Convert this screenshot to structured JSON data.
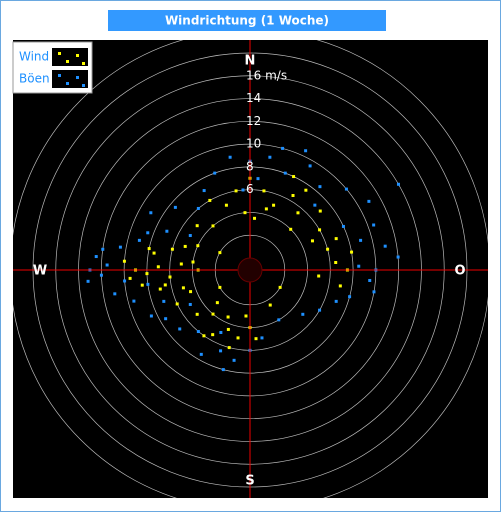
{
  "chart_data": {
    "type": "polar-scatter",
    "title": "Windrichtung (1 Woche)",
    "directions": {
      "N": 0,
      "O": 90,
      "S": 180,
      "W": 270
    },
    "rlim": [
      0,
      18
    ],
    "rings": [
      2,
      4,
      6,
      8,
      10,
      12,
      14,
      16,
      18,
      20
    ],
    "rticks": [
      6,
      8,
      10,
      12,
      14,
      {
        "value": 16,
        "label": "16 m/s"
      }
    ],
    "legend": "upper left",
    "series": [
      {
        "name": "Böen",
        "color": "#1e90ff",
        "direction": [
          270,
          268,
          272,
          265,
          275,
          260,
          280,
          285,
          255,
          262,
          290,
          250,
          278,
          266,
          295,
          245,
          300,
          240,
          340,
          350,
          0,
          10,
          20,
          30,
          40,
          50,
          330,
          320,
          310,
          25,
          15,
          5,
          355,
          45,
          60,
          70,
          80,
          90,
          75,
          85,
          95,
          100,
          65,
          105,
          110,
          88,
          180,
          190,
          200,
          210,
          220,
          195,
          230,
          170,
          205,
          130,
          150,
          120,
          240,
          300,
          60
        ],
        "values": [
          13,
          12,
          11.5,
          10,
          12.5,
          11,
          10.5,
          9,
          9.5,
          8,
          8.5,
          7,
          12,
          13.2,
          7,
          8.5,
          9,
          7.5,
          8,
          9,
          8.5,
          9,
          8,
          9.5,
          8.5,
          10,
          7,
          6,
          7.5,
          10.5,
          10,
          7,
          6,
          7,
          11,
          10.5,
          11,
          10,
          9,
          12,
          9.5,
          10,
          8,
          8,
          7,
          8.5,
          6,
          7,
          6.5,
          7.5,
          6,
          8,
          7,
          5,
          5,
          5,
          4,
          6,
          5,
          5,
          14
        ]
      },
      {
        "name": "Wind",
        "color": "#ffff00",
        "direction": [
          270,
          268,
          272,
          265,
          275,
          260,
          280,
          262,
          278,
          255,
          285,
          270,
          258,
          290,
          250,
          274,
          266,
          282,
          245,
          295,
          340,
          350,
          0,
          10,
          20,
          30,
          40,
          50,
          355,
          5,
          15,
          320,
          310,
          330,
          25,
          45,
          60,
          35,
          70,
          80,
          90,
          75,
          85,
          100,
          65,
          95,
          180,
          190,
          200,
          210,
          220,
          185,
          195,
          205,
          215,
          230,
          175,
          225,
          120,
          150,
          240,
          300
        ],
        "values": [
          9,
          8,
          7,
          6,
          5,
          6.5,
          7.5,
          8.5,
          4,
          5,
          6,
          3.5,
          7,
          5,
          4.5,
          10,
          9.5,
          8,
          6,
          4,
          5,
          6,
          7,
          6,
          5,
          6.5,
          5.5,
          7,
          4,
          3.5,
          4.5,
          4,
          5,
          6,
          8,
          4,
          6,
          7.5,
          7,
          8,
          7.5,
          6,
          6.5,
          7,
          5,
          5,
          4,
          5,
          4.5,
          5.5,
          4,
          3,
          6,
          3.5,
          6,
          5,
          5,
          3,
          2,
          2.5,
          2,
          2
        ]
      }
    ]
  }
}
